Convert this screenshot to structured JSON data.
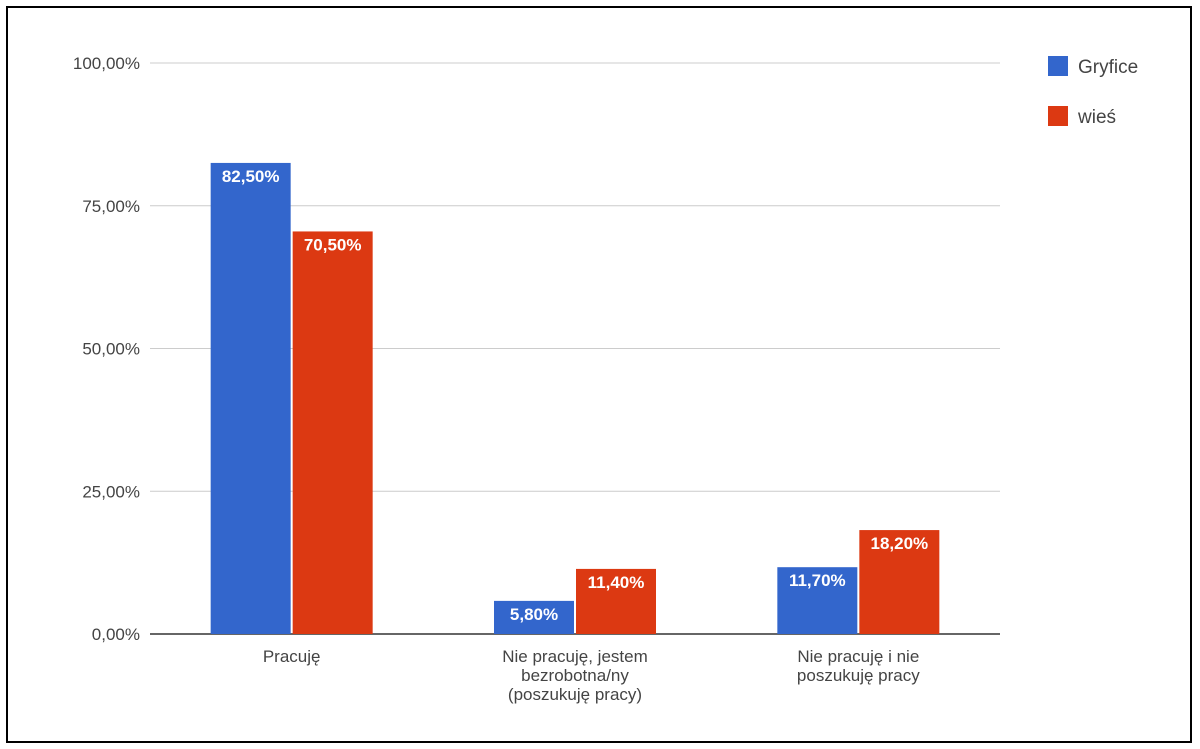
{
  "chart_data": {
    "type": "bar",
    "categories": [
      [
        "Pracuję"
      ],
      [
        "Nie pracuję, jestem",
        "bezrobotna/ny",
        "(poszukuję pracy)"
      ],
      [
        "Nie pracuję i nie",
        "poszukuję pracy"
      ]
    ],
    "series": [
      {
        "name": "Gryfice",
        "color": "#3366cc",
        "values": [
          82.5,
          5.8,
          11.7
        ],
        "labels": [
          "82,50%",
          "5,80%",
          "11,70%"
        ]
      },
      {
        "name": "wieś",
        "color": "#dc3912",
        "values": [
          70.5,
          11.4,
          18.2
        ],
        "labels": [
          "70,50%",
          "11,40%",
          "18,20%"
        ]
      }
    ],
    "ylim": [
      0,
      100
    ],
    "y_ticks": [
      {
        "value": 0,
        "label": "0,00%"
      },
      {
        "value": 25,
        "label": "25,00%"
      },
      {
        "value": 50,
        "label": "50,00%"
      },
      {
        "value": 75,
        "label": "75,00%"
      },
      {
        "value": 100,
        "label": "100,00%"
      }
    ],
    "grid": true,
    "legend_position": "top-right"
  }
}
